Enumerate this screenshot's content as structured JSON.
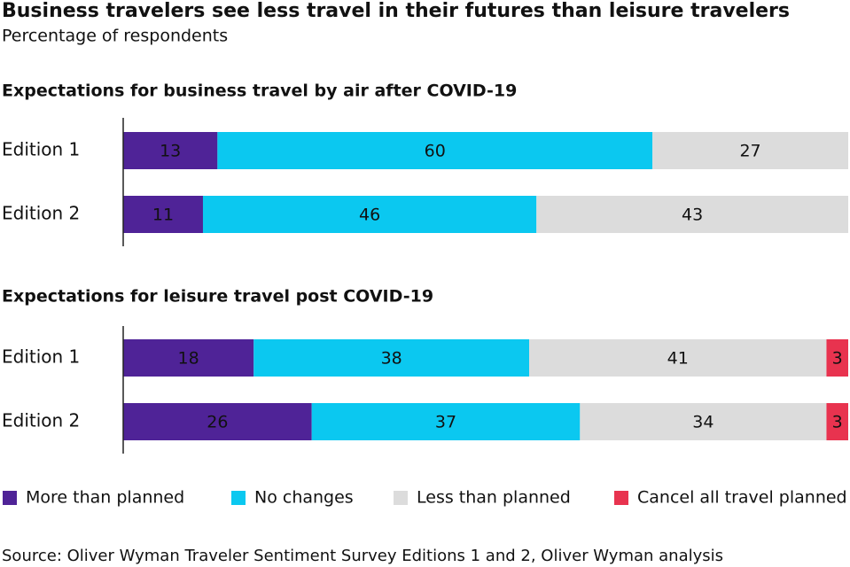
{
  "title": "Business travelers see less travel in their futures than leisure travelers",
  "subtitle": "Percentage of respondents",
  "source": "Source: Oliver Wyman Traveler Sentiment Survey Editions 1 and 2, Oliver Wyman analysis",
  "chart_data": [
    {
      "type": "bar",
      "orientation": "horizontal",
      "stacked": true,
      "title": "Expectations for business travel by air after COVID-19",
      "categories": [
        "Edition 1",
        "Edition 2"
      ],
      "xlim": [
        0,
        100
      ],
      "series": [
        {
          "name": "More than planned",
          "color": "#4f2397",
          "values": [
            13,
            11
          ]
        },
        {
          "name": "No changes",
          "color": "#0bc8f0",
          "values": [
            60,
            46
          ]
        },
        {
          "name": "Less than planned",
          "color": "#dcdcdc",
          "values": [
            27,
            43
          ]
        }
      ]
    },
    {
      "type": "bar",
      "orientation": "horizontal",
      "stacked": true,
      "title": "Expectations for leisure travel post COVID-19",
      "categories": [
        "Edition 1",
        "Edition 2"
      ],
      "xlim": [
        0,
        100
      ],
      "series": [
        {
          "name": "More than planned",
          "color": "#4f2397",
          "values": [
            18,
            26
          ]
        },
        {
          "name": "No changes",
          "color": "#0bc8f0",
          "values": [
            38,
            37
          ]
        },
        {
          "name": "Less than planned",
          "color": "#dcdcdc",
          "values": [
            41,
            34
          ]
        },
        {
          "name": "Cancel all travel planned",
          "color": "#e8334f",
          "values": [
            3,
            3
          ]
        }
      ]
    }
  ]
}
